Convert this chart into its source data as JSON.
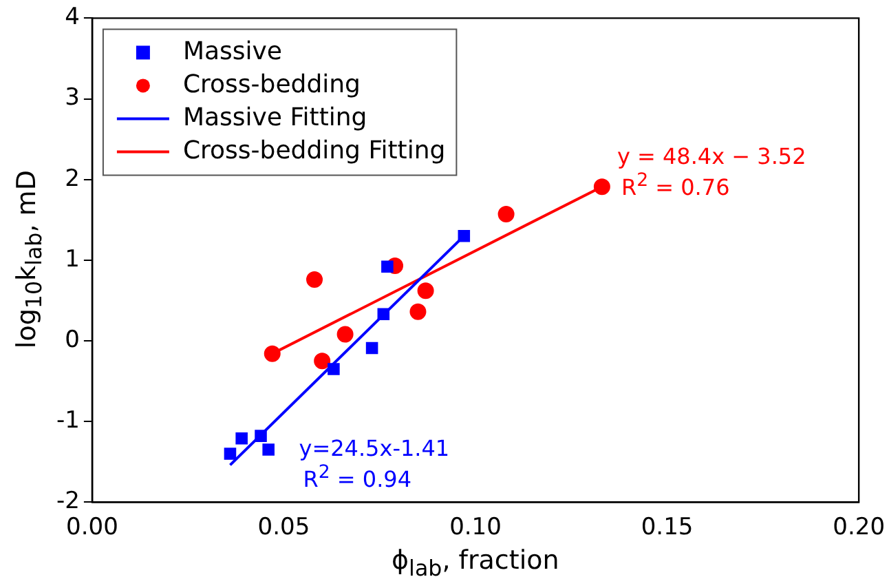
{
  "chart_data": {
    "type": "scatter",
    "xlabel": "ϕ$_{lab}$, fraction",
    "ylabel": "log$_{10}$k$_{lab}$, mD",
    "xlim": [
      0,
      0.2
    ],
    "xticks": [
      {
        "value": 0,
        "label": "0.00"
      },
      {
        "value": 0.05,
        "label": "0.05"
      },
      {
        "value": 0.1,
        "label": "0.10"
      },
      {
        "value": 0.15,
        "label": "0.15"
      },
      {
        "value": 0.2,
        "label": "0.20"
      }
    ],
    "ylim": [
      -2,
      4
    ],
    "yticks": [
      -2,
      -1,
      0,
      1,
      2,
      3,
      4
    ],
    "grid": false,
    "legend": "top left",
    "series": [
      {
        "name": "Massive",
        "marker": "square",
        "color": "#0000ff",
        "x": [
          0.036,
          0.039,
          0.044,
          0.046,
          0.063,
          0.073,
          0.076,
          0.077,
          0.097
        ],
        "values": [
          -1.4,
          -1.21,
          -1.18,
          -1.35,
          -0.35,
          -0.09,
          0.33,
          0.92,
          1.3
        ]
      },
      {
        "name": "Cross-bedding",
        "marker": "circle",
        "color": "#ff0000",
        "x": [
          0.047,
          0.06,
          0.058,
          0.066,
          0.079,
          0.087,
          0.085,
          0.108,
          0.133
        ],
        "values": [
          -0.16,
          -0.25,
          0.76,
          0.08,
          0.93,
          0.62,
          0.36,
          1.57,
          1.91
        ]
      },
      {
        "name": "Massive Fitting",
        "type": "line",
        "marker": "none",
        "color": "#0000ff",
        "x": [
          0.036,
          0.097
        ],
        "values": [
          -1.54,
          1.3
        ]
      },
      {
        "name": "Cross-bedding Fitting",
        "type": "line",
        "marker": "none",
        "color": "#ff0000",
        "x": [
          0.047,
          0.133
        ],
        "values": [
          -0.16,
          1.91
        ]
      }
    ],
    "annotations": [
      "y=24.5x-1.41",
      "R$^{2}$ = 0.94",
      "y = 48.4x − 3.52",
      "R$^{2}$ = 0.76"
    ]
  }
}
